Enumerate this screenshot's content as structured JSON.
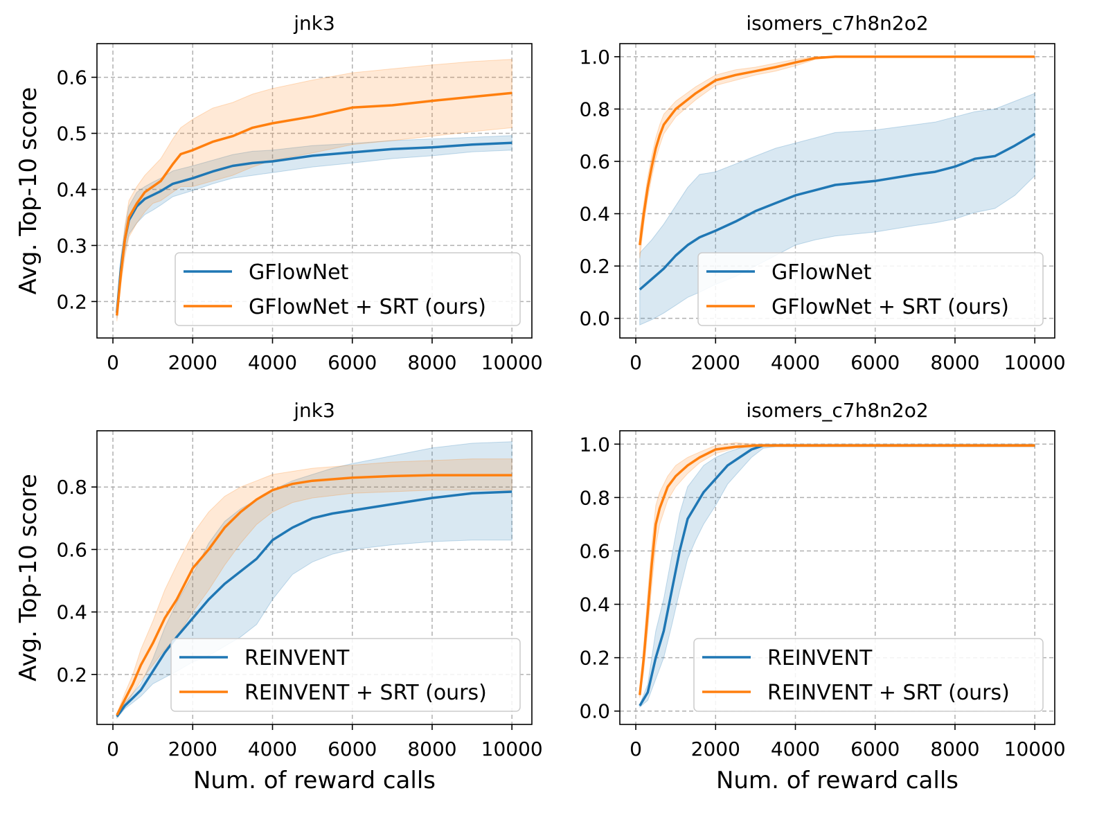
{
  "colors": {
    "blue": "#1f77b4",
    "orange": "#ff7f0e",
    "grid": "#b0b0b0"
  },
  "chart_data": [
    {
      "type": "line",
      "title": "jnk3",
      "xlabel": "",
      "ylabel": "Avg. Top-10 score",
      "xlim": [
        -400,
        10500
      ],
      "ylim": [
        0.135,
        0.66
      ],
      "xticks": [
        "0",
        "2000",
        "4000",
        "6000",
        "8000",
        "10000"
      ],
      "yticks": [
        "0.2",
        "0.3",
        "0.4",
        "0.5",
        "0.6"
      ],
      "grid": true,
      "legend": "lower-right",
      "series": [
        {
          "name": "GFlowNet",
          "x": [
            100,
            200,
            300,
            400,
            600,
            800,
            1000,
            1200,
            1500,
            2000,
            2500,
            3000,
            3500,
            4000,
            5000,
            6000,
            7000,
            8000,
            9000,
            10000
          ],
          "y": [
            0.18,
            0.26,
            0.31,
            0.345,
            0.37,
            0.383,
            0.39,
            0.397,
            0.41,
            0.42,
            0.432,
            0.442,
            0.447,
            0.45,
            0.46,
            0.466,
            0.472,
            0.475,
            0.48,
            0.483
          ],
          "lower": [
            0.17,
            0.24,
            0.29,
            0.32,
            0.34,
            0.355,
            0.363,
            0.372,
            0.387,
            0.398,
            0.41,
            0.42,
            0.425,
            0.43,
            0.44,
            0.447,
            0.455,
            0.46,
            0.467,
            0.47
          ],
          "upper": [
            0.19,
            0.28,
            0.33,
            0.37,
            0.395,
            0.405,
            0.413,
            0.42,
            0.433,
            0.442,
            0.452,
            0.462,
            0.468,
            0.47,
            0.478,
            0.482,
            0.487,
            0.49,
            0.493,
            0.496
          ]
        },
        {
          "name": "GFlowNet + SRT (ours)",
          "x": [
            100,
            200,
            300,
            400,
            600,
            800,
            1000,
            1200,
            1500,
            1700,
            2000,
            2500,
            3000,
            3500,
            4000,
            5000,
            6000,
            7000,
            8000,
            9000,
            10000
          ],
          "y": [
            0.175,
            0.25,
            0.31,
            0.35,
            0.375,
            0.395,
            0.405,
            0.415,
            0.445,
            0.463,
            0.47,
            0.485,
            0.495,
            0.51,
            0.518,
            0.53,
            0.546,
            0.55,
            0.558,
            0.565,
            0.572
          ],
          "lower": [
            0.165,
            0.23,
            0.28,
            0.315,
            0.34,
            0.36,
            0.375,
            0.38,
            0.395,
            0.405,
            0.405,
            0.415,
            0.425,
            0.44,
            0.452,
            0.465,
            0.48,
            0.487,
            0.495,
            0.503,
            0.51
          ],
          "upper": [
            0.185,
            0.27,
            0.335,
            0.38,
            0.405,
            0.425,
            0.44,
            0.455,
            0.49,
            0.51,
            0.525,
            0.545,
            0.555,
            0.57,
            0.58,
            0.595,
            0.608,
            0.615,
            0.622,
            0.628,
            0.632
          ]
        }
      ]
    },
    {
      "type": "line",
      "title": "isomers_c7h8n2o2",
      "xlabel": "",
      "ylabel": "",
      "xlim": [
        -400,
        10500
      ],
      "ylim": [
        -0.075,
        1.05
      ],
      "xticks": [
        "0",
        "2000",
        "4000",
        "6000",
        "8000",
        "10000"
      ],
      "yticks": [
        "0.0",
        "0.2",
        "0.4",
        "0.6",
        "0.8",
        "1.0"
      ],
      "grid": true,
      "legend": "lower-right",
      "series": [
        {
          "name": "GFlowNet",
          "x": [
            100,
            400,
            700,
            1000,
            1300,
            1600,
            2000,
            2500,
            3000,
            3500,
            4000,
            4500,
            5000,
            6000,
            7000,
            7500,
            8000,
            8500,
            9000,
            9500,
            10000
          ],
          "y": [
            0.11,
            0.15,
            0.19,
            0.24,
            0.28,
            0.31,
            0.335,
            0.37,
            0.41,
            0.44,
            0.47,
            0.49,
            0.51,
            0.525,
            0.55,
            0.56,
            0.58,
            0.61,
            0.62,
            0.66,
            0.705
          ],
          "lower": [
            -0.025,
            -0.005,
            0.02,
            0.05,
            0.08,
            0.1,
            0.13,
            0.16,
            0.2,
            0.24,
            0.28,
            0.3,
            0.315,
            0.33,
            0.355,
            0.365,
            0.38,
            0.405,
            0.42,
            0.47,
            0.545
          ],
          "upper": [
            0.25,
            0.3,
            0.36,
            0.43,
            0.5,
            0.55,
            0.56,
            0.59,
            0.62,
            0.65,
            0.67,
            0.69,
            0.71,
            0.72,
            0.74,
            0.75,
            0.77,
            0.79,
            0.8,
            0.83,
            0.86
          ]
        },
        {
          "name": "GFlowNet + SRT (ours)",
          "x": [
            100,
            200,
            300,
            400,
            500,
            600,
            700,
            1000,
            1500,
            2000,
            2500,
            3000,
            3500,
            4000,
            4500,
            5000,
            6000,
            7000,
            8000,
            9000,
            10000
          ],
          "y": [
            0.28,
            0.4,
            0.5,
            0.58,
            0.65,
            0.7,
            0.74,
            0.8,
            0.86,
            0.91,
            0.93,
            0.945,
            0.96,
            0.978,
            0.995,
            1.0,
            1.0,
            1.0,
            1.0,
            1.0,
            1.0
          ],
          "lower": [
            0.23,
            0.36,
            0.46,
            0.54,
            0.61,
            0.66,
            0.705,
            0.77,
            0.835,
            0.89,
            0.91,
            0.93,
            0.945,
            0.965,
            0.99,
            0.998,
            0.998,
            0.998,
            0.998,
            0.998,
            0.998
          ],
          "upper": [
            0.33,
            0.44,
            0.54,
            0.62,
            0.69,
            0.74,
            0.78,
            0.83,
            0.885,
            0.93,
            0.95,
            0.96,
            0.975,
            0.99,
            1.0,
            1.002,
            1.002,
            1.002,
            1.002,
            1.002,
            1.002
          ]
        }
      ]
    },
    {
      "type": "line",
      "title": "jnk3",
      "xlabel": "Num. of reward calls",
      "ylabel": "Avg. Top-10 score",
      "xlim": [
        -400,
        10500
      ],
      "ylim": [
        0.04,
        0.98
      ],
      "xticks": [
        "0",
        "2000",
        "4000",
        "6000",
        "8000",
        "10000"
      ],
      "yticks": [
        "0.2",
        "0.4",
        "0.6",
        "0.8"
      ],
      "grid": true,
      "legend": "lower-right",
      "series": [
        {
          "name": "REINVENT",
          "x": [
            100,
            300,
            500,
            700,
            1000,
            1300,
            1600,
            2000,
            2400,
            2800,
            3200,
            3600,
            4000,
            4500,
            5000,
            5500,
            6000,
            7000,
            8000,
            9000,
            10000
          ],
          "y": [
            0.065,
            0.1,
            0.125,
            0.15,
            0.21,
            0.27,
            0.32,
            0.38,
            0.44,
            0.49,
            0.53,
            0.57,
            0.63,
            0.67,
            0.7,
            0.715,
            0.725,
            0.745,
            0.765,
            0.78,
            0.785
          ],
          "lower": [
            0.06,
            0.09,
            0.11,
            0.13,
            0.17,
            0.19,
            0.21,
            0.24,
            0.26,
            0.29,
            0.32,
            0.36,
            0.44,
            0.52,
            0.56,
            0.585,
            0.6,
            0.615,
            0.625,
            0.63,
            0.63
          ],
          "upper": [
            0.07,
            0.11,
            0.14,
            0.17,
            0.25,
            0.35,
            0.43,
            0.52,
            0.62,
            0.69,
            0.73,
            0.76,
            0.79,
            0.82,
            0.84,
            0.86,
            0.875,
            0.9,
            0.925,
            0.94,
            0.945
          ]
        },
        {
          "name": "REINVENT + SRT (ours)",
          "x": [
            100,
            300,
            500,
            700,
            1000,
            1300,
            1600,
            2000,
            2400,
            2800,
            3200,
            3600,
            4000,
            4500,
            5000,
            6000,
            7000,
            8000,
            9000,
            10000
          ],
          "y": [
            0.07,
            0.12,
            0.17,
            0.23,
            0.3,
            0.38,
            0.44,
            0.54,
            0.6,
            0.67,
            0.72,
            0.76,
            0.79,
            0.81,
            0.82,
            0.83,
            0.835,
            0.838,
            0.838,
            0.838
          ],
          "lower": [
            0.065,
            0.1,
            0.14,
            0.18,
            0.23,
            0.28,
            0.32,
            0.4,
            0.47,
            0.55,
            0.62,
            0.68,
            0.72,
            0.75,
            0.765,
            0.78,
            0.785,
            0.79,
            0.79,
            0.79
          ],
          "upper": [
            0.075,
            0.14,
            0.2,
            0.28,
            0.37,
            0.47,
            0.55,
            0.65,
            0.72,
            0.77,
            0.8,
            0.82,
            0.84,
            0.85,
            0.86,
            0.87,
            0.88,
            0.885,
            0.89,
            0.89
          ]
        }
      ]
    },
    {
      "type": "line",
      "title": "isomers_c7h8n2o2",
      "xlabel": "Num. of reward calls",
      "ylabel": "",
      "xlim": [
        -400,
        10500
      ],
      "ylim": [
        -0.05,
        1.05
      ],
      "xticks": [
        "0",
        "2000",
        "4000",
        "6000",
        "8000",
        "10000"
      ],
      "yticks": [
        "0.0",
        "0.2",
        "0.4",
        "0.6",
        "0.8",
        "1.0"
      ],
      "grid": true,
      "legend": "lower-right",
      "series": [
        {
          "name": "REINVENT",
          "x": [
            100,
            300,
            500,
            700,
            900,
            1100,
            1300,
            1500,
            1700,
            2000,
            2300,
            2600,
            2900,
            3200,
            3500,
            4000,
            5000,
            6000,
            8000,
            10000
          ],
          "y": [
            0.02,
            0.07,
            0.2,
            0.3,
            0.45,
            0.6,
            0.72,
            0.77,
            0.82,
            0.87,
            0.92,
            0.95,
            0.98,
            0.995,
            0.995,
            0.995,
            0.995,
            0.995,
            0.995,
            0.995
          ],
          "lower": [
            0.015,
            0.04,
            0.12,
            0.2,
            0.32,
            0.45,
            0.57,
            0.64,
            0.7,
            0.77,
            0.85,
            0.9,
            0.95,
            0.985,
            0.99,
            0.99,
            0.99,
            0.99,
            0.99,
            0.99
          ],
          "upper": [
            0.025,
            0.1,
            0.3,
            0.42,
            0.58,
            0.74,
            0.84,
            0.88,
            0.92,
            0.95,
            0.97,
            0.985,
            0.995,
            1.0,
            1.0,
            1.0,
            1.0,
            1.0,
            1.0,
            1.0
          ]
        },
        {
          "name": "REINVENT + SRT (ours)",
          "x": [
            100,
            200,
            300,
            400,
            500,
            600,
            800,
            1000,
            1300,
            1600,
            2000,
            2500,
            3000,
            4000,
            6000,
            8000,
            10000
          ],
          "y": [
            0.06,
            0.2,
            0.37,
            0.55,
            0.7,
            0.76,
            0.84,
            0.88,
            0.92,
            0.95,
            0.98,
            0.99,
            0.995,
            0.995,
            0.995,
            0.995,
            0.995
          ],
          "lower": [
            0.05,
            0.15,
            0.3,
            0.47,
            0.62,
            0.7,
            0.79,
            0.84,
            0.89,
            0.93,
            0.965,
            0.985,
            0.99,
            0.99,
            0.99,
            0.99,
            0.99
          ],
          "upper": [
            0.07,
            0.25,
            0.44,
            0.62,
            0.77,
            0.82,
            0.88,
            0.92,
            0.95,
            0.97,
            0.995,
            1.005,
            1.0,
            1.0,
            1.0,
            1.0,
            1.0
          ]
        }
      ]
    }
  ]
}
